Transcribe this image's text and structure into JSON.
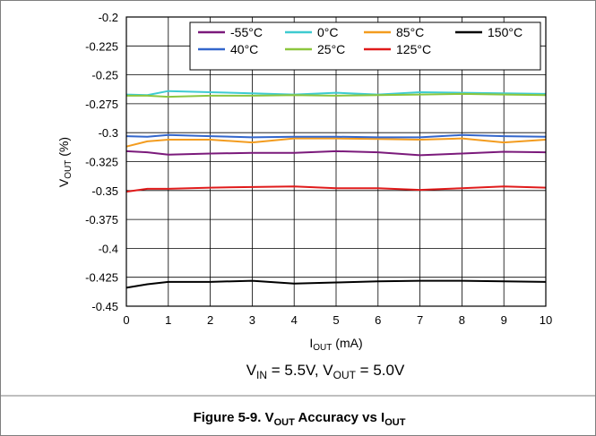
{
  "chart_data": {
    "type": "line",
    "x": [
      0,
      0.5,
      1,
      2,
      3,
      4,
      5,
      6,
      7,
      8,
      9,
      10
    ],
    "xlim": [
      0,
      10
    ],
    "ylim": [
      -0.45,
      -0.2
    ],
    "xticks": [
      0,
      1,
      2,
      3,
      4,
      5,
      6,
      7,
      8,
      9,
      10
    ],
    "yticks": [
      -0.2,
      -0.225,
      -0.25,
      -0.275,
      -0.3,
      -0.325,
      -0.35,
      -0.375,
      -0.4,
      -0.425,
      -0.45
    ],
    "xtick_labels": [
      "0",
      "1",
      "2",
      "3",
      "4",
      "5",
      "6",
      "7",
      "8",
      "9",
      "10"
    ],
    "ytick_labels": [
      "-0.2",
      "-0.225",
      "-0.25",
      "-0.275",
      "-0.3",
      "-0.325",
      "-0.35",
      "-0.375",
      "-0.4",
      "-0.425",
      "-0.45"
    ],
    "ylabel": {
      "main": "V",
      "sub": "OUT",
      "rest": " (%)"
    },
    "xlabel": {
      "main": "I",
      "sub": "OUT",
      "rest": " (mA)"
    },
    "condition": {
      "p1": "V",
      "s1": "IN",
      "p2": " = 5.5V, V",
      "s2": "OUT",
      "p3": " = 5.0V"
    },
    "caption": {
      "p1": "Figure 5-9. V",
      "s1": "OUT",
      "p2": " Accuracy vs I",
      "s2": "OUT"
    },
    "grid": true,
    "legend_position": "top-right",
    "series": [
      {
        "name": "-55°C",
        "color": "#7b1a7b",
        "values": [
          -0.316,
          -0.317,
          -0.319,
          -0.318,
          -0.3175,
          -0.3175,
          -0.316,
          -0.317,
          -0.3195,
          -0.318,
          -0.3165,
          -0.317
        ]
      },
      {
        "name": "0°C",
        "color": "#3ecbd0",
        "values": [
          -0.267,
          -0.2675,
          -0.264,
          -0.265,
          -0.266,
          -0.267,
          -0.2655,
          -0.267,
          -0.265,
          -0.2655,
          -0.266,
          -0.2665
        ]
      },
      {
        "name": "85°C",
        "color": "#f39c1f",
        "values": [
          -0.312,
          -0.3075,
          -0.306,
          -0.306,
          -0.3085,
          -0.305,
          -0.305,
          -0.3055,
          -0.306,
          -0.305,
          -0.3085,
          -0.306
        ]
      },
      {
        "name": "150°C",
        "color": "#000000",
        "values": [
          -0.434,
          -0.431,
          -0.429,
          -0.429,
          -0.428,
          -0.4305,
          -0.4295,
          -0.4285,
          -0.428,
          -0.428,
          -0.4285,
          -0.429
        ]
      },
      {
        "name": "40°C",
        "color": "#3366cc",
        "values": [
          -0.303,
          -0.3035,
          -0.302,
          -0.303,
          -0.304,
          -0.3035,
          -0.3035,
          -0.304,
          -0.304,
          -0.302,
          -0.303,
          -0.3035
        ]
      },
      {
        "name": "25°C",
        "color": "#8cc63e",
        "values": [
          -0.268,
          -0.268,
          -0.269,
          -0.268,
          -0.268,
          -0.2675,
          -0.268,
          -0.2675,
          -0.267,
          -0.2665,
          -0.267,
          -0.2675
        ]
      },
      {
        "name": "125°C",
        "color": "#e01b1b",
        "values": [
          -0.351,
          -0.3485,
          -0.3485,
          -0.3475,
          -0.347,
          -0.3465,
          -0.348,
          -0.348,
          -0.3495,
          -0.348,
          -0.3465,
          -0.3475
        ]
      }
    ]
  }
}
